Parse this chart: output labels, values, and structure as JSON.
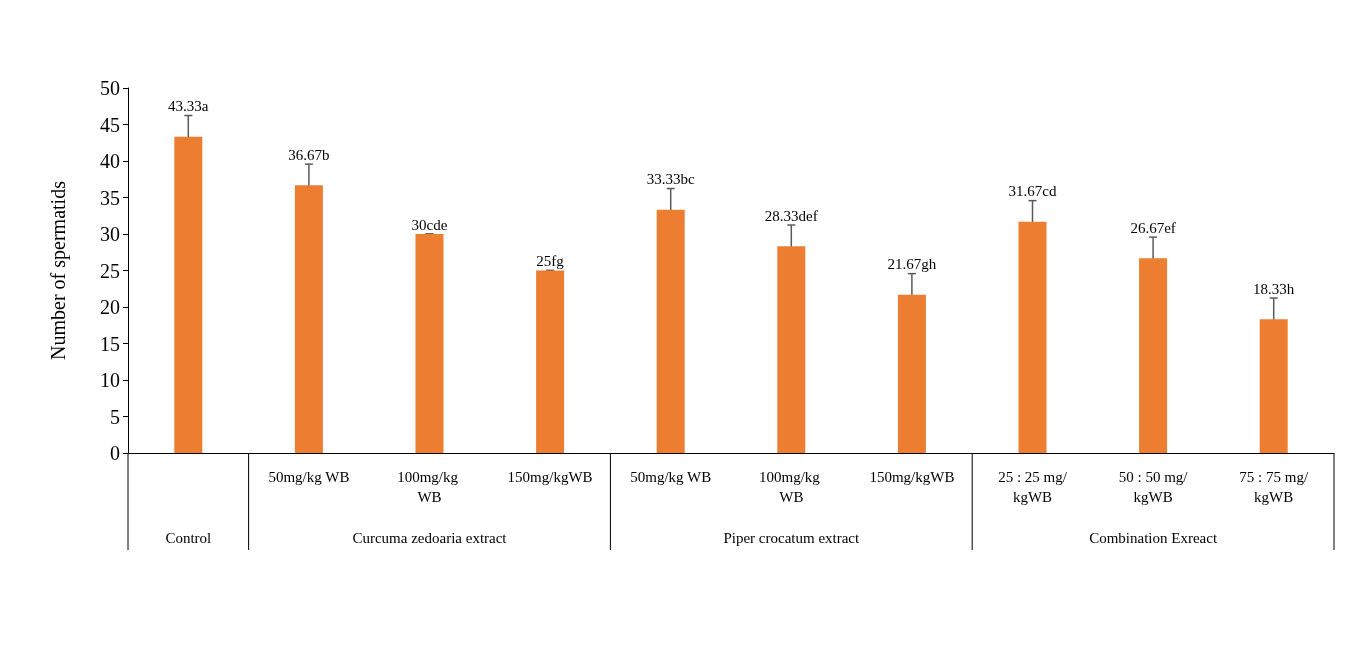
{
  "chart_data": {
    "type": "bar",
    "ylabel": "Number of spermatids",
    "categories": [
      null,
      "50mg/kg WB",
      "100mg/kg WB",
      "150mg/kgWB",
      "50mg/kg WB",
      "100mg/kg WB",
      "150mg/kgWB",
      "25 : 25 mg/kgWB",
      "50 : 50 mg/kgWB",
      "75 : 75 mg/kgWB"
    ],
    "values": [
      43.33,
      36.67,
      30,
      25,
      33.33,
      28.33,
      21.67,
      31.67,
      26.67,
      18.33
    ],
    "errors": [
      2.9,
      2.9,
      0,
      0,
      2.9,
      2.9,
      2.9,
      2.9,
      2.9,
      2.9
    ],
    "value_labels": [
      "43.33a",
      "36.67b",
      "30cde",
      "25fg",
      "33.33bc",
      "28.33def",
      "21.67gh",
      "31.67cd",
      "26.67ef",
      "18.33h"
    ],
    "color": "#ed7d31",
    "ylim": [
      0,
      50
    ],
    "yticks": [
      0,
      5,
      10,
      15,
      20,
      25,
      30,
      35,
      40,
      45,
      50
    ],
    "annotations": [
      "Control",
      "Curcuma zedoaria extract",
      "Piper crocatum extract",
      "Combination Exreact"
    ]
  }
}
